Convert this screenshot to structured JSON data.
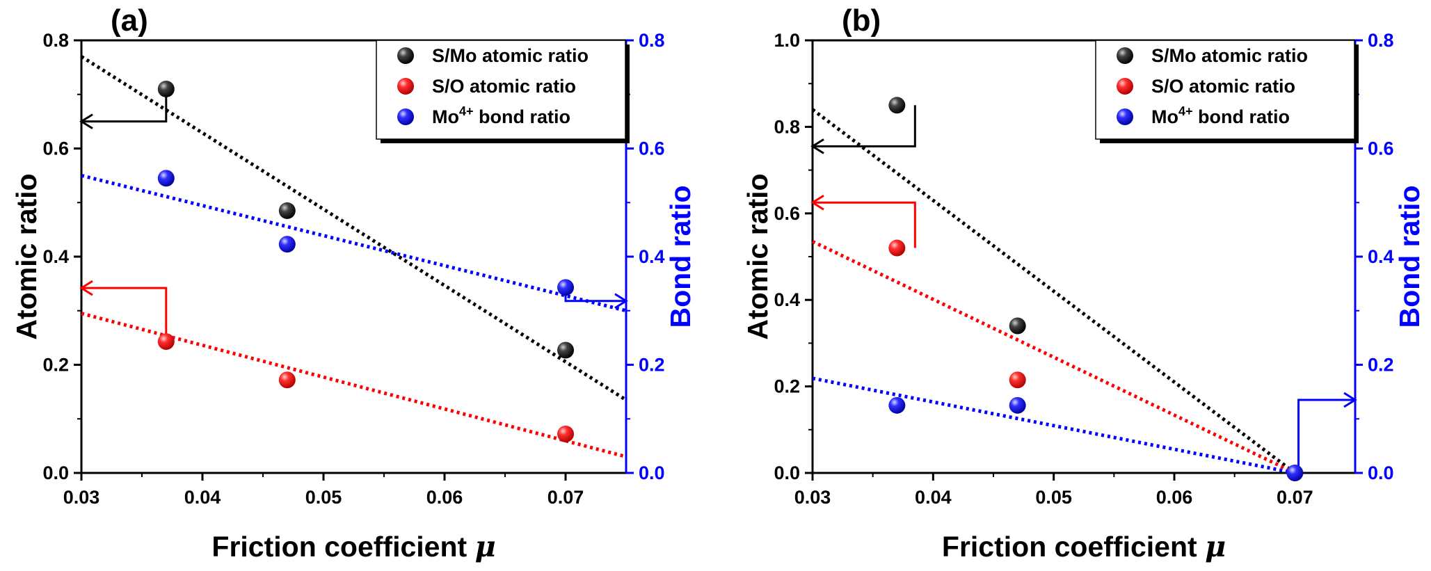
{
  "chart_data": [
    {
      "panel_label": "(a)",
      "type": "scatter",
      "xlabel": "Friction coefficient",
      "xlabel_symbol": "μ",
      "ylabel": "Atomic ratio",
      "y2label": "Bond ratio",
      "xlim": [
        0.03,
        0.075
      ],
      "ylim": [
        0.0,
        0.8
      ],
      "y2lim": [
        0.0,
        0.8
      ],
      "xticks": [
        "0.03",
        "0.04",
        "0.05",
        "0.06",
        "0.07"
      ],
      "yticks": [
        "0.0",
        "0.2",
        "0.4",
        "0.6",
        "0.8"
      ],
      "y2ticks": [
        "0.0",
        "0.2",
        "0.4",
        "0.6",
        "0.8"
      ],
      "legend_position": "top-right",
      "series": [
        {
          "name": "S/Mo atomic ratio",
          "legend_main": "S/Mo atomic ratio",
          "legend_sup": "",
          "legend_tail": "",
          "color": "#000000",
          "axis": "left",
          "x": [
            0.037,
            0.047,
            0.07
          ],
          "y": [
            0.71,
            0.485,
            0.227
          ],
          "fit": {
            "x": [
              0.03,
              0.075
            ],
            "y": [
              0.77,
              0.135
            ]
          }
        },
        {
          "name": "S/O atomic ratio",
          "legend_main": "S/O atomic ratio",
          "legend_sup": "",
          "legend_tail": "",
          "color": "#ff0000",
          "axis": "left",
          "x": [
            0.037,
            0.047,
            0.07
          ],
          "y": [
            0.243,
            0.172,
            0.072
          ],
          "fit": {
            "x": [
              0.03,
              0.075
            ],
            "y": [
              0.295,
              0.03
            ]
          }
        },
        {
          "name": "Mo4+ bond ratio",
          "legend_main": "Mo",
          "legend_sup": "4+",
          "legend_tail": " bond ratio",
          "color": "#0000ff",
          "axis": "right",
          "x": [
            0.037,
            0.047,
            0.07
          ],
          "y": [
            0.545,
            0.423,
            0.343
          ],
          "fit": {
            "x": [
              0.03,
              0.075
            ],
            "y": [
              0.55,
              0.3
            ]
          }
        }
      ],
      "axis_arrows": [
        {
          "series": "S/Mo atomic ratio",
          "from": [
            0.037,
            0.71
          ],
          "corner_y": 0.65,
          "to_x": 0.03,
          "direction": "left"
        },
        {
          "series": "S/O atomic ratio",
          "from": [
            0.037,
            0.243
          ],
          "corner_y": 0.342,
          "to_x": 0.03,
          "direction": "left"
        },
        {
          "series": "Mo4+ bond ratio",
          "from": [
            0.07,
            0.343
          ],
          "corner_y": 0.318,
          "to_x": 0.075,
          "direction": "right"
        }
      ]
    },
    {
      "panel_label": "(b)",
      "type": "scatter",
      "xlabel": "Friction coefficient",
      "xlabel_symbol": "μ",
      "ylabel": "Atomic ratio",
      "y2label": "Bond ratio",
      "xlim": [
        0.03,
        0.075
      ],
      "ylim": [
        0.0,
        1.0
      ],
      "y2lim": [
        0.0,
        0.8
      ],
      "xticks": [
        "0.03",
        "0.04",
        "0.05",
        "0.06",
        "0.07"
      ],
      "yticks": [
        "0.0",
        "0.2",
        "0.4",
        "0.6",
        "0.8",
        "1.0"
      ],
      "y2ticks": [
        "0.0",
        "0.2",
        "0.4",
        "0.6",
        "0.8"
      ],
      "legend_position": "top-right",
      "series": [
        {
          "name": "S/Mo atomic ratio",
          "legend_main": "S/Mo atomic ratio",
          "legend_sup": "",
          "legend_tail": "",
          "color": "#000000",
          "axis": "left",
          "x": [
            0.037,
            0.047
          ],
          "y": [
            0.85,
            0.34
          ],
          "fit": {
            "x": [
              0.03,
              0.07
            ],
            "y": [
              0.84,
              0.0
            ]
          }
        },
        {
          "name": "S/O atomic ratio",
          "legend_main": "S/O atomic ratio",
          "legend_sup": "",
          "legend_tail": "",
          "color": "#ff0000",
          "axis": "left",
          "x": [
            0.037,
            0.047
          ],
          "y": [
            0.52,
            0.215
          ],
          "fit": {
            "x": [
              0.03,
              0.07
            ],
            "y": [
              0.535,
              0.0
            ]
          }
        },
        {
          "name": "Mo4+ bond ratio",
          "legend_main": "Mo",
          "legend_sup": "4+",
          "legend_tail": " bond ratio",
          "color": "#0000ff",
          "axis": "right",
          "x": [
            0.037,
            0.047,
            0.07
          ],
          "y": [
            0.125,
            0.125,
            0.0
          ],
          "fit": {
            "x": [
              0.03,
              0.07
            ],
            "y": [
              0.175,
              0.0
            ]
          }
        }
      ],
      "axis_arrows": [
        {
          "series": "S/Mo atomic ratio",
          "from": [
            0.0385,
            0.85
          ],
          "corner_y": 0.755,
          "to_x": 0.03,
          "direction": "left"
        },
        {
          "series": "S/O atomic ratio",
          "from": [
            0.0385,
            0.52
          ],
          "corner_y": 0.625,
          "to_x": 0.03,
          "direction": "left"
        },
        {
          "series": "Mo4+ bond ratio",
          "from": [
            0.0703,
            0.0
          ],
          "corner_y": 0.135,
          "to_x": 0.075,
          "direction": "right"
        }
      ]
    }
  ]
}
